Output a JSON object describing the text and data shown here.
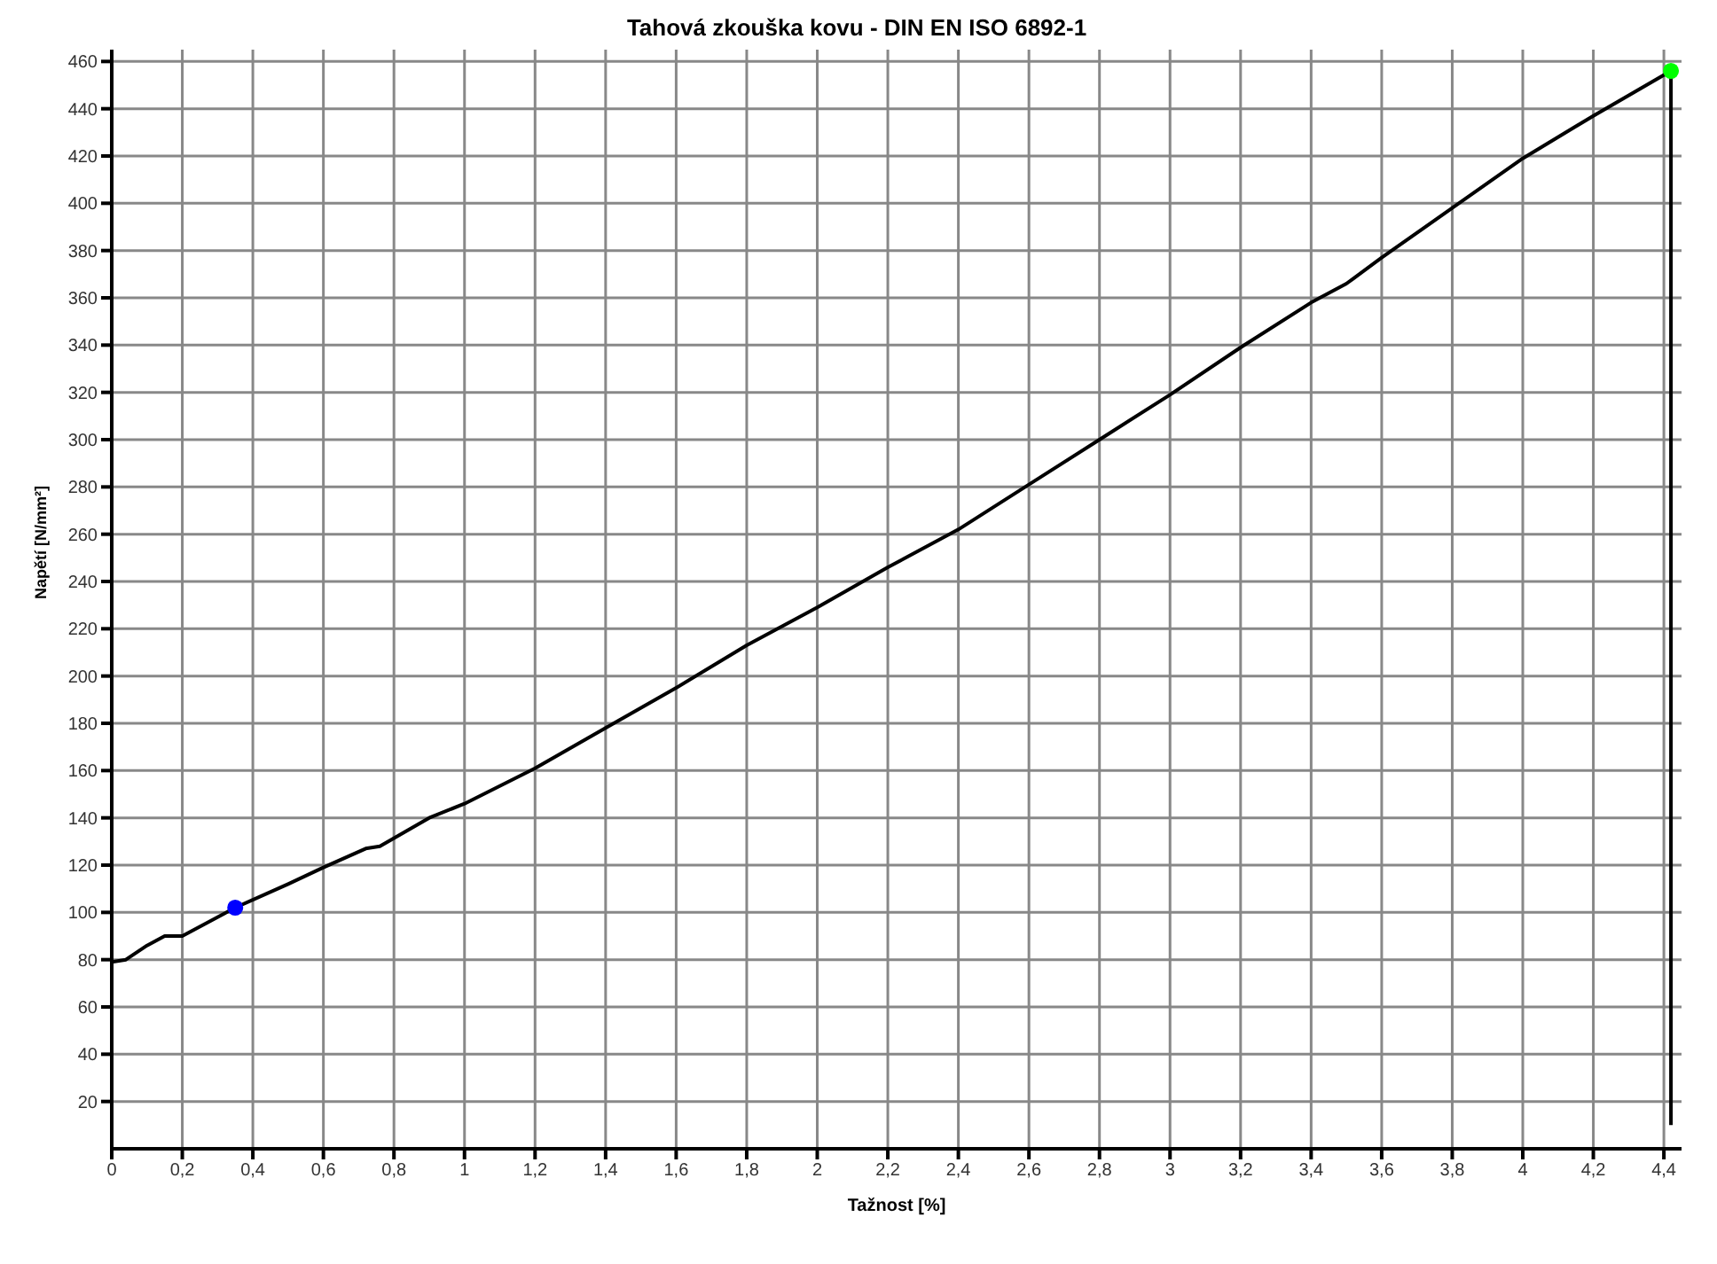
{
  "chart_data": {
    "type": "line",
    "title": "Tahová zkouška kovu - DIN EN ISO 6892-1",
    "xlabel": "Tažnost [%]",
    "ylabel": "Napětí [N/mm²]",
    "xlim": [
      0,
      4.45
    ],
    "ylim": [
      0,
      465
    ],
    "xticks": [
      0,
      {
        "value": 0.2,
        "label": "0,2"
      },
      {
        "value": 0.4,
        "label": "0,4"
      },
      {
        "value": 0.6,
        "label": "0,6"
      },
      {
        "value": 0.8,
        "label": "0,8"
      },
      1,
      {
        "value": 1.2,
        "label": "1,2"
      },
      {
        "value": 1.4,
        "label": "1,4"
      },
      {
        "value": 1.6,
        "label": "1,6"
      },
      {
        "value": 1.8,
        "label": "1,8"
      },
      2,
      {
        "value": 2.2,
        "label": "2,2"
      },
      {
        "value": 2.4,
        "label": "2,4"
      },
      {
        "value": 2.6,
        "label": "2,6"
      },
      {
        "value": 2.8,
        "label": "2,8"
      },
      3,
      {
        "value": 3.2,
        "label": "3,2"
      },
      {
        "value": 3.4,
        "label": "3,4"
      },
      {
        "value": 3.6,
        "label": "3,6"
      },
      {
        "value": 3.8,
        "label": "3,8"
      },
      4,
      {
        "value": 4.2,
        "label": "4,2"
      },
      {
        "value": 4.4,
        "label": "4,4"
      }
    ],
    "yticks": [
      20,
      40,
      60,
      80,
      100,
      120,
      140,
      160,
      180,
      200,
      220,
      240,
      260,
      280,
      300,
      320,
      340,
      360,
      380,
      400,
      420,
      440,
      460
    ],
    "grid": true,
    "series": [
      {
        "color": "#000000",
        "marker": "none",
        "x": [
          0,
          0.04,
          0.1,
          0.15,
          0.2,
          0.35,
          0.5,
          0.6,
          0.72,
          0.76,
          0.9,
          1,
          1.2,
          1.4,
          1.6,
          1.8,
          2,
          2.2,
          2.4,
          2.6,
          2.8,
          3,
          3.2,
          3.4,
          3.5,
          3.6,
          3.8,
          4,
          4.2,
          4.42,
          4.42
        ],
        "values": [
          79,
          80,
          86,
          90,
          90,
          102,
          112,
          119,
          127,
          128,
          140,
          146,
          161,
          178,
          195,
          213,
          229,
          246,
          262,
          281,
          300,
          319,
          339,
          358,
          366,
          377,
          398,
          419,
          437,
          456,
          10
        ]
      },
      {
        "type": "scatter",
        "color": "#0000ff",
        "marker": "circle",
        "x": [
          0.35
        ],
        "values": [
          102
        ]
      },
      {
        "type": "scatter",
        "color": "#00ff00",
        "marker": "circle",
        "x": [
          4.42
        ],
        "values": [
          456
        ]
      }
    ]
  }
}
